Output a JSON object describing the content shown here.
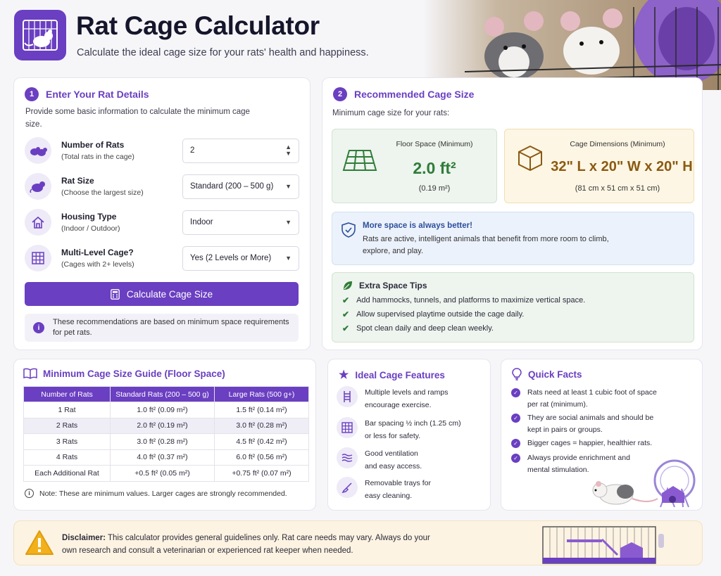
{
  "header": {
    "title": "Rat Cage Calculator",
    "subtitle": "Calculate the ideal cage size for your rats' health and happiness."
  },
  "details": {
    "step": "1",
    "heading": "Enter Your Rat Details",
    "description": "Provide some basic information to calculate the minimum cage size.",
    "fields": [
      {
        "label": "Number of Rats",
        "hint": "(Total rats in the cage)",
        "value": "2",
        "icon": "rats-icon"
      },
      {
        "label": "Rat Size",
        "hint": "(Choose the largest size)",
        "value": "Standard (200 – 500 g)",
        "icon": "rat-icon"
      },
      {
        "label": "Housing Type",
        "hint": "(Indoor / Outdoor)",
        "value": "Indoor",
        "icon": "house-icon"
      },
      {
        "label": "Multi-Level Cage?",
        "hint": "(Cages with 2+ levels)",
        "value": "Yes (2 Levels or More)",
        "icon": "grid-icon"
      }
    ],
    "button": "Calculate Cage Size",
    "note": "These recommendations are based on minimum space requirements for pet rats."
  },
  "result": {
    "step": "2",
    "heading": "Recommended Cage Size",
    "description": "Minimum cage size for your rats:",
    "floor": {
      "label": "Floor Space (Minimum)",
      "value": "2.0 ft²",
      "metric": "(0.19 m²)"
    },
    "dims": {
      "label": "Cage Dimensions (Minimum)",
      "value": "32\" L x 20\" W x 20\" H",
      "metric": "(81 cm x 51 cm x 51 cm)"
    },
    "info_title": "More space is always better!",
    "info_text": "Rats are active, intelligent animals that benefit from more room to climb, explore, and play.",
    "tips_title": "Extra Space Tips",
    "tips": [
      "Add hammocks, tunnels, and platforms to maximize vertical space.",
      "Allow supervised playtime outside the cage daily.",
      "Spot clean daily and deep clean weekly."
    ]
  },
  "guide": {
    "heading": "Minimum Cage Size Guide (Floor Space)",
    "columns": [
      "Number of Rats",
      "Standard Rats (200 – 500 g)",
      "Large Rats (500 g+)"
    ],
    "rows": [
      [
        "1 Rat",
        "1.0 ft² (0.09 m²)",
        "1.5 ft² (0.14 m²)"
      ],
      [
        "2 Rats",
        "2.0 ft² (0.19 m²)",
        "3.0 ft² (0.28 m²)"
      ],
      [
        "3 Rats",
        "3.0 ft² (0.28 m²)",
        "4.5 ft² (0.42 m²)"
      ],
      [
        "4 Rats",
        "4.0 ft² (0.37 m²)",
        "6.0 ft² (0.56 m²)"
      ],
      [
        "Each Additional Rat",
        "+0.5 ft² (0.05 m²)",
        "+0.75 ft² (0.07 m²)"
      ]
    ],
    "note": "Note: These are minimum values. Larger cages are strongly recommended."
  },
  "features": {
    "heading": "Ideal Cage Features",
    "items": [
      {
        "text1": "Multiple levels and ramps",
        "text2": "encourage exercise.",
        "icon": "ladder-icon"
      },
      {
        "text1": "Bar spacing ½ inch (1.25 cm)",
        "text2": "or less for safety.",
        "icon": "bars-icon"
      },
      {
        "text1": "Good ventilation",
        "text2": "and easy access.",
        "icon": "wind-icon"
      },
      {
        "text1": "Removable trays for",
        "text2": "easy cleaning.",
        "icon": "broom-icon"
      }
    ]
  },
  "facts": {
    "heading": "Quick Facts",
    "items": [
      {
        "text1": "Rats need at least 1 cubic foot of space",
        "text2": "per rat (minimum)."
      },
      {
        "text1": "They are social animals and should be",
        "text2": "kept in pairs or groups."
      },
      {
        "text1": "Bigger cages = happier, healthier rats.",
        "text2": ""
      },
      {
        "text1": "Always provide enrichment and",
        "text2": "mental stimulation."
      }
    ]
  },
  "disclaimer": {
    "label": "Disclaimer:",
    "text1": " This calculator provides general guidelines only. Rat care needs may vary. Always do your",
    "text2": "own research and consult a veterinarian or experienced rat keeper when needed."
  },
  "colors": {
    "accent": "#6a3fc1",
    "green": "#2f7d3a",
    "gold": "#8a5a12"
  }
}
